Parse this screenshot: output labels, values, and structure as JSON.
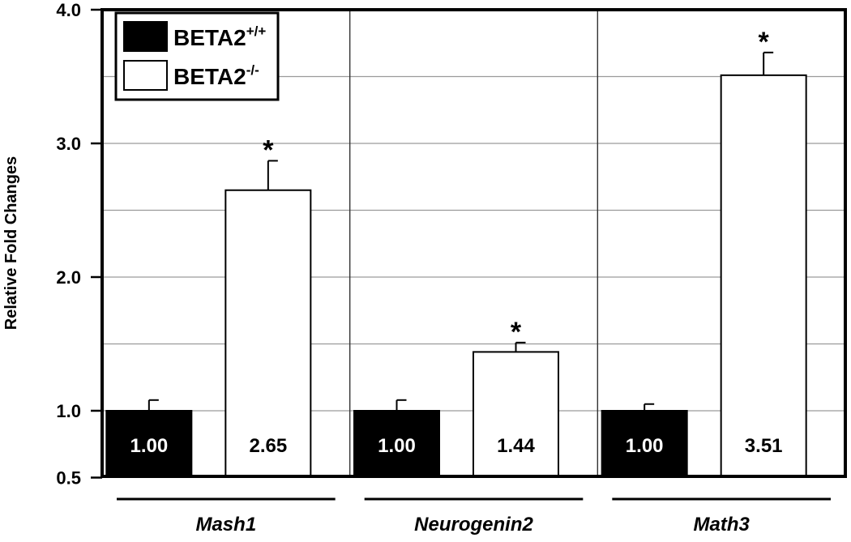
{
  "chart_data": {
    "type": "bar",
    "ylabel": "Relative Fold Changes",
    "xlabel": "",
    "ylim": [
      0.5,
      4.0
    ],
    "yticks": [
      {
        "value": 0.5,
        "label": "0.5"
      },
      {
        "value": 1.0,
        "label": "1.0"
      },
      {
        "value": 2.0,
        "label": "2.0"
      },
      {
        "value": 3.0,
        "label": "3.0"
      },
      {
        "value": 4.0,
        "label": "4.0"
      }
    ],
    "gridlines": [
      1.0,
      1.5,
      2.0,
      2.5,
      3.0,
      3.5
    ],
    "categories": [
      "Mash1",
      "Neurogenin2",
      "Math3"
    ],
    "legend_position": "top-left",
    "series": [
      {
        "name": "BETA2",
        "superscript": "+/+",
        "color": "#000000",
        "values": [
          1.0,
          1.0,
          1.0
        ],
        "value_labels": [
          "1.00",
          "1.00",
          "1.00"
        ],
        "errors": [
          0.08,
          0.08,
          0.05
        ],
        "significance": [
          "",
          "",
          ""
        ]
      },
      {
        "name": "BETA2",
        "superscript": "-/-",
        "color": "#ffffff",
        "values": [
          2.65,
          1.44,
          3.51
        ],
        "value_labels": [
          "2.65",
          "1.44",
          "3.51"
        ],
        "errors": [
          0.22,
          0.07,
          0.17
        ],
        "significance": [
          "*",
          "*",
          "*"
        ]
      }
    ]
  }
}
